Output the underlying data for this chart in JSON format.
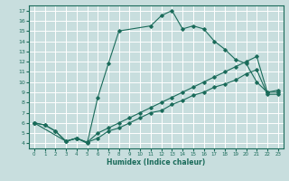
{
  "xlabel": "Humidex (Indice chaleur)",
  "bg_color": "#c8dede",
  "grid_color": "#ffffff",
  "line_color": "#1a6b5a",
  "xlim": [
    -0.5,
    23.5
  ],
  "ylim": [
    3.5,
    17.5
  ],
  "xticks": [
    0,
    1,
    2,
    3,
    4,
    5,
    6,
    7,
    8,
    9,
    10,
    11,
    12,
    13,
    14,
    15,
    16,
    17,
    18,
    19,
    20,
    21,
    22,
    23
  ],
  "yticks": [
    4,
    5,
    6,
    7,
    8,
    9,
    10,
    11,
    12,
    13,
    14,
    15,
    16,
    17
  ],
  "series": [
    {
      "x": [
        0,
        1,
        2,
        3,
        4,
        5,
        6,
        7,
        8,
        9,
        10,
        11,
        12,
        13,
        14,
        15,
        16,
        17,
        18,
        19,
        20,
        21,
        22,
        23
      ],
      "y": [
        6.0,
        5.8,
        5.2,
        4.2,
        4.5,
        4.1,
        4.5,
        5.2,
        5.5,
        6.0,
        6.5,
        7.0,
        7.2,
        7.8,
        8.2,
        8.7,
        9.0,
        9.5,
        9.8,
        10.2,
        10.8,
        11.2,
        8.8,
        8.8
      ]
    },
    {
      "x": [
        0,
        1,
        2,
        3,
        4,
        5,
        6,
        7,
        8,
        9,
        10,
        11,
        12,
        13,
        14,
        15,
        16,
        17,
        18,
        19,
        20,
        21,
        22,
        23
      ],
      "y": [
        6.0,
        5.8,
        5.2,
        4.2,
        4.5,
        4.1,
        5.0,
        5.5,
        6.0,
        6.5,
        7.0,
        7.5,
        8.0,
        8.5,
        9.0,
        9.5,
        10.0,
        10.5,
        11.0,
        11.5,
        12.0,
        12.5,
        9.0,
        9.0
      ]
    },
    {
      "x": [
        0,
        3,
        4,
        5,
        6,
        7,
        8,
        11,
        12,
        13,
        14,
        15,
        16,
        17,
        18,
        19,
        20,
        21,
        22,
        23
      ],
      "y": [
        6.0,
        4.2,
        4.5,
        4.0,
        8.5,
        11.8,
        15.0,
        15.5,
        16.5,
        17.0,
        15.2,
        15.5,
        15.2,
        14.0,
        13.2,
        12.2,
        11.8,
        10.0,
        9.0,
        9.2
      ]
    }
  ]
}
